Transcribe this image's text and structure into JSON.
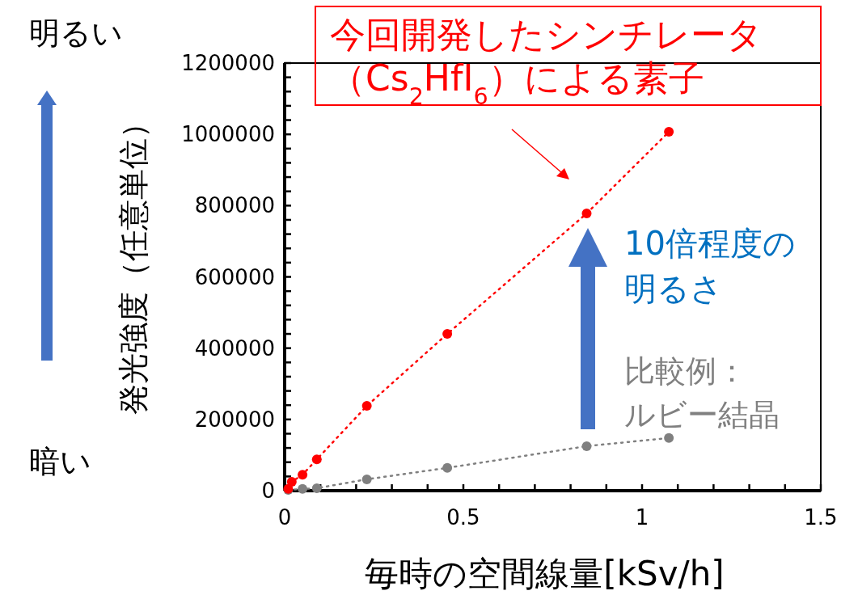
{
  "chart_data": {
    "type": "line",
    "xlabel": "毎時の空間線量[kSv/h]",
    "ylabel": "発光強度（任意単位）",
    "xlim": [
      0,
      1.5
    ],
    "ylim": [
      0,
      1200000
    ],
    "xticks": [
      0,
      {
        "value": 0.1,
        "label": null
      },
      {
        "value": 0.2,
        "label": null
      },
      {
        "value": 0.3,
        "label": null
      },
      {
        "value": 0.4,
        "label": null
      },
      0.5,
      {
        "value": 0.6,
        "label": null
      },
      {
        "value": 0.7,
        "label": null
      },
      {
        "value": 0.8,
        "label": null
      },
      {
        "value": 0.9,
        "label": null
      },
      1,
      {
        "value": 1.1,
        "label": null
      },
      {
        "value": 1.2,
        "label": null
      },
      {
        "value": 1.3,
        "label": null
      },
      {
        "value": 1.4,
        "label": null
      },
      1.5
    ],
    "yticks": [
      0,
      {
        "value": 40000,
        "label": null
      },
      {
        "value": 80000,
        "label": null
      },
      {
        "value": 120000,
        "label": null
      },
      {
        "value": 160000,
        "label": null
      },
      200000,
      {
        "value": 240000,
        "label": null
      },
      {
        "value": 280000,
        "label": null
      },
      {
        "value": 320000,
        "label": null
      },
      {
        "value": 360000,
        "label": null
      },
      400000,
      {
        "value": 440000,
        "label": null
      },
      {
        "value": 480000,
        "label": null
      },
      {
        "value": 520000,
        "label": null
      },
      {
        "value": 560000,
        "label": null
      },
      600000,
      {
        "value": 640000,
        "label": null
      },
      {
        "value": 680000,
        "label": null
      },
      {
        "value": 720000,
        "label": null
      },
      {
        "value": 760000,
        "label": null
      },
      800000,
      {
        "value": 840000,
        "label": null
      },
      {
        "value": 880000,
        "label": null
      },
      {
        "value": 920000,
        "label": null
      },
      {
        "value": 960000,
        "label": null
      },
      1000000,
      {
        "value": 1040000,
        "label": null
      },
      {
        "value": 1080000,
        "label": null
      },
      {
        "value": 1120000,
        "label": null
      },
      {
        "value": 1160000,
        "label": null
      },
      1200000
    ],
    "marker": "circle",
    "line_style": "dotted",
    "grid": false,
    "series": [
      {
        "name": "今回開発したシンチレータ（Cs$_{2}$HfI$_{6}$）による素子",
        "color": "#ff0000",
        "x": [
          0.01,
          0.02,
          0.05,
          0.09,
          0.23,
          0.455,
          0.845,
          1.075
        ],
        "values": [
          5000,
          25000,
          45000,
          88000,
          238000,
          440000,
          778000,
          1007000
        ]
      },
      {
        "name": "比較例：ルビー結晶",
        "color": "#808080",
        "x": [
          0.01,
          0.05,
          0.09,
          0.23,
          0.455,
          0.845,
          1.075
        ],
        "values": [
          2000,
          5000,
          7000,
          32000,
          64000,
          125000,
          148000
        ]
      }
    ],
    "annotations": [
      "10倍程度の明るさ",
      "明るい",
      "暗い"
    ]
  }
}
